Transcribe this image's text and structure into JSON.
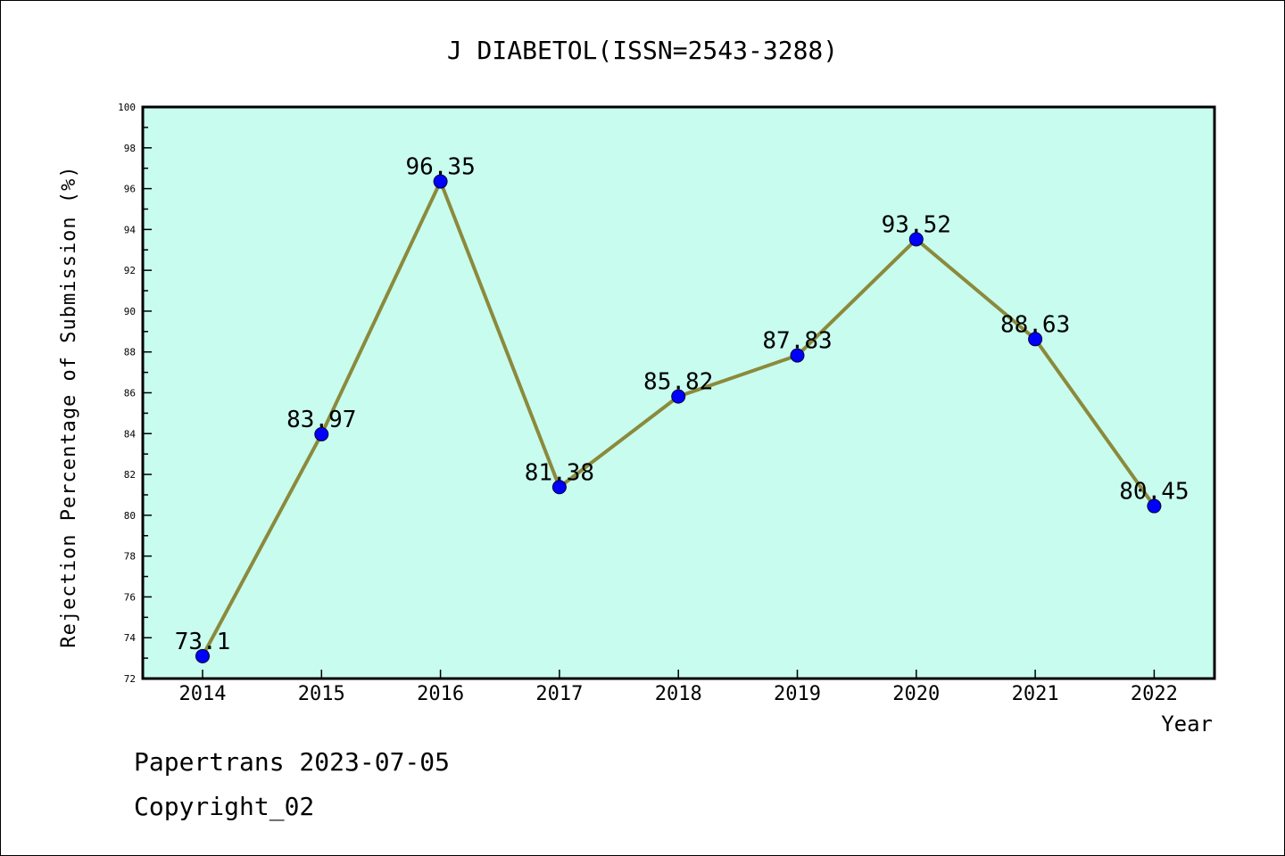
{
  "chart_data": {
    "type": "line",
    "title": "J DIABETOL(ISSN=2543-3288)",
    "xlabel": "Year",
    "ylabel": "Rejection Percentage of Submission (%)",
    "categories": [
      "2014",
      "2015",
      "2016",
      "2017",
      "2018",
      "2019",
      "2020",
      "2021",
      "2022"
    ],
    "values": [
      73.1,
      83.97,
      96.35,
      81.38,
      85.82,
      87.83,
      93.52,
      88.63,
      80.45
    ],
    "data_labels": [
      "73.1",
      "83.97",
      "96.35",
      "81.38",
      "85.82",
      "87.83",
      "93.52",
      "88.63",
      "80.45"
    ],
    "ylim": [
      72,
      100
    ],
    "yticks": [
      "72",
      "74",
      "76",
      "78",
      "80",
      "82",
      "84",
      "86",
      "88",
      "90",
      "92",
      "94",
      "96",
      "98",
      "100"
    ],
    "grid": false,
    "colors": {
      "plot_background": "#c8fcee",
      "line": "#8b8a3c",
      "marker": "#0000ff"
    }
  },
  "footer": {
    "line1": "Papertrans 2023-07-05",
    "line2": "Copyright_02"
  }
}
